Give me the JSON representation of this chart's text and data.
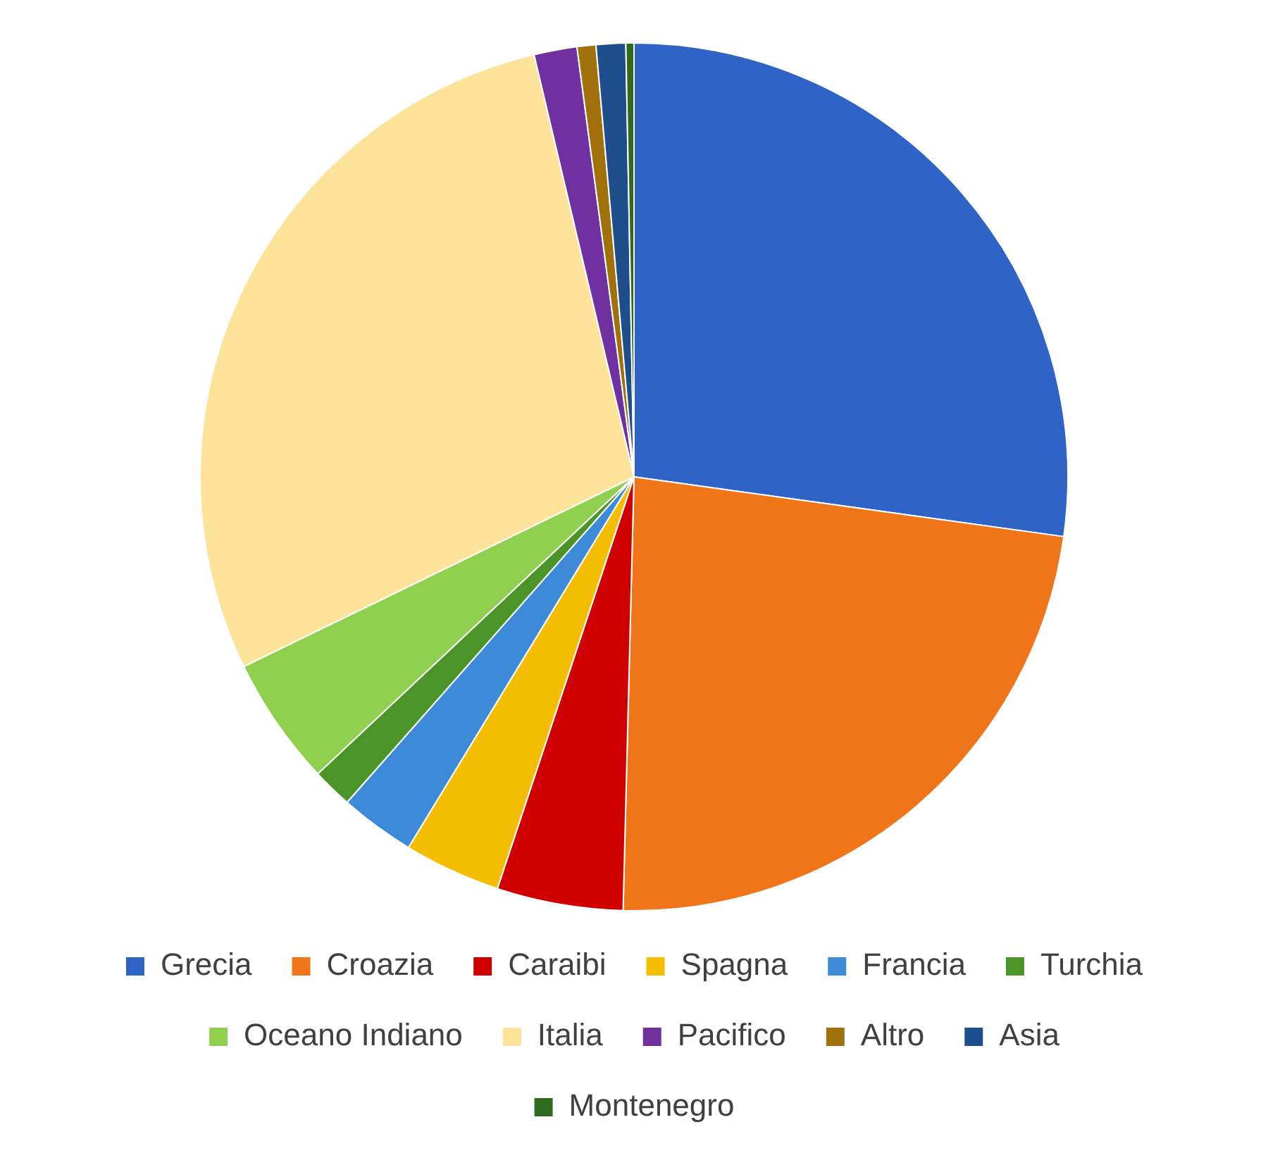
{
  "chart_data": {
    "type": "pie",
    "categories": [
      "Grecia",
      "Croazia",
      "Caraibi",
      "Spagna",
      "Francia",
      "Turchia",
      "Oceano Indiano",
      "Italia",
      "Pacifico",
      "Altro",
      "Asia",
      "Montenegro"
    ],
    "values": [
      27.2,
      23.2,
      4.7,
      3.6,
      2.8,
      1.5,
      4.8,
      28.5,
      1.6,
      0.7,
      1.1,
      0.3
    ],
    "colors": [
      "#2f63c6",
      "#f07418",
      "#d00000",
      "#f5bd00",
      "#3d8ad8",
      "#4a9428",
      "#8fd14f",
      "#fde39a",
      "#7030a0",
      "#a0700a",
      "#1f4e8c",
      "#2e6b1e"
    ],
    "legend": "bottom"
  }
}
